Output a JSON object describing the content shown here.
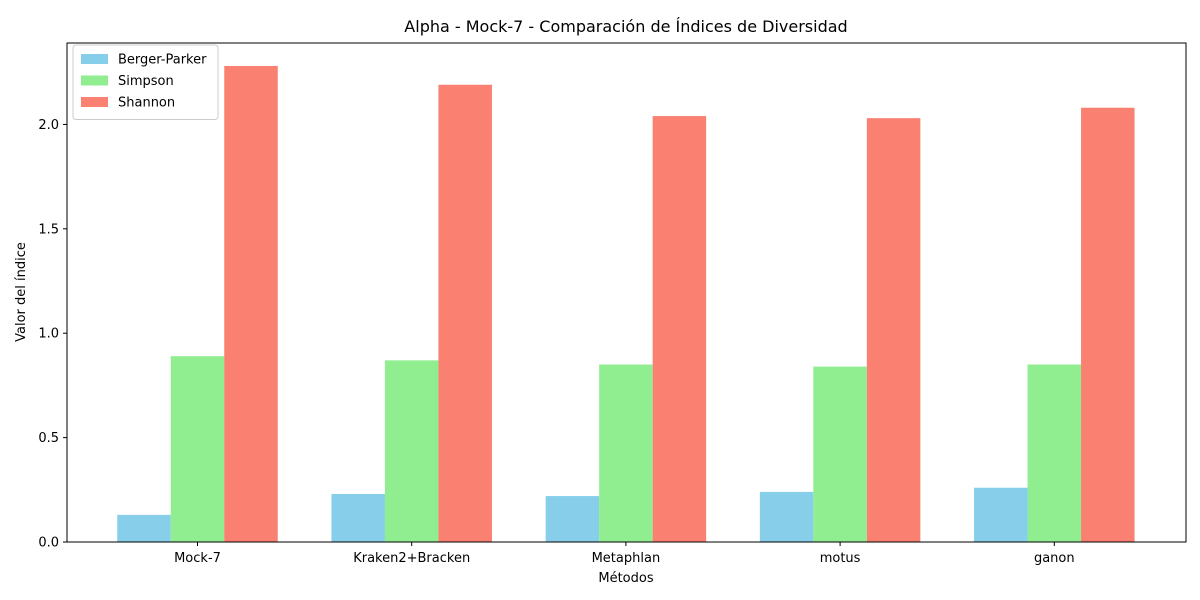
{
  "chart_data": {
    "type": "bar",
    "title": "Alpha - Mock-7 - Comparación de Índices de Diversidad",
    "xlabel": "Métodos",
    "ylabel": "Valor del índice",
    "categories": [
      "Mock-7",
      "Kraken2+Bracken",
      "Metaphlan",
      "motus",
      "ganon"
    ],
    "series": [
      {
        "name": "Berger-Parker",
        "color": "#87CEEB",
        "values": [
          0.13,
          0.23,
          0.22,
          0.24,
          0.26
        ]
      },
      {
        "name": "Simpson",
        "color": "#90EE90",
        "values": [
          0.89,
          0.87,
          0.85,
          0.84,
          0.85
        ]
      },
      {
        "name": "Shannon",
        "color": "#FA8072",
        "values": [
          2.28,
          2.19,
          2.04,
          2.03,
          2.08
        ]
      }
    ],
    "ylim": [
      0,
      2.39
    ],
    "yticks": [
      "0.0",
      "0.5",
      "1.0",
      "1.5",
      "2.0"
    ],
    "grid": false,
    "legend_position": "top-left"
  }
}
